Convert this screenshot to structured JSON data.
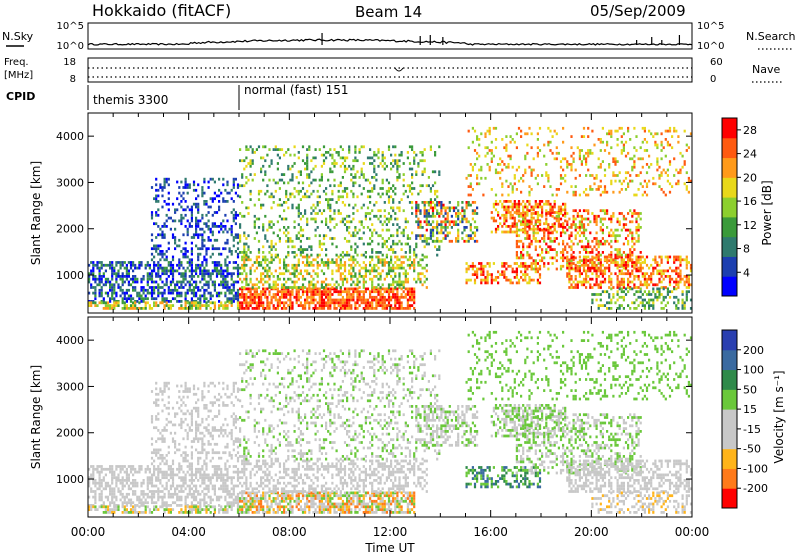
{
  "header": {
    "station": "Hokkaido (fitACF)",
    "beam": "Beam 14",
    "date": "05/Sep/2009"
  },
  "noise_panel": {
    "left_label": "N.Sky",
    "right_label": "N.Search",
    "left_ticks": [
      "10^5",
      "10^0"
    ],
    "right_ticks": [
      "10^5",
      "10^0"
    ]
  },
  "freq_panel": {
    "left_label_1": "Freq.",
    "left_label_2": "[MHz]",
    "left_ticks": [
      "18",
      "8"
    ],
    "right_ticks": [
      "60",
      "0"
    ],
    "right_label": "Nave"
  },
  "cpid_panel": {
    "label": "CPID",
    "modes": [
      {
        "name": "themis 3300",
        "start_hour": 0
      },
      {
        "name": "normal (fast) 151",
        "start_hour": 6
      }
    ]
  },
  "colors": {
    "power_scale": [
      "#0000ff",
      "#1c3fb0",
      "#2f7a6e",
      "#3a9a3a",
      "#8ccf2e",
      "#e8d81a",
      "#ff9a1a",
      "#ff5a10",
      "#ff0000"
    ],
    "velocity_scale": [
      "#2a3fb0",
      "#3a6aa0",
      "#2f8a4a",
      "#6ac83a",
      "#c8c8c8",
      "#c8c8c8",
      "#ffb41a",
      "#ff7a1a",
      "#ff0000"
    ]
  },
  "chart_data": [
    {
      "type": "heatmap",
      "name": "power",
      "ylabel": "Slant Range [km]",
      "xlim": [
        0,
        24
      ],
      "ylim": [
        180,
        4500
      ],
      "yticks": [
        1000,
        2000,
        3000,
        4000
      ],
      "colorbar_label": "Power [dB]",
      "colorbar_ticks": [
        "4",
        "8",
        "12",
        "16",
        "20",
        "24",
        "28"
      ],
      "colorbar_range": [
        0,
        30
      ]
    },
    {
      "type": "heatmap",
      "name": "velocity",
      "ylabel": "Slant Range [km]",
      "xlim": [
        0,
        24
      ],
      "ylim": [
        180,
        4500
      ],
      "yticks": [
        1000,
        2000,
        3000,
        4000
      ],
      "colorbar_label": "Velocity [m s⁻¹]",
      "colorbar_ticks": [
        "200",
        "100",
        "50",
        "15",
        "-15",
        "-50",
        "-100",
        "-200"
      ],
      "colorbar_range": [
        -250,
        250
      ]
    }
  ],
  "x_axis": {
    "label": "Time UT",
    "ticks": [
      "00:00",
      "04:00",
      "08:00",
      "12:00",
      "16:00",
      "20:00",
      "00:00"
    ],
    "tick_hours": [
      0,
      4,
      8,
      12,
      16,
      20,
      24
    ]
  }
}
